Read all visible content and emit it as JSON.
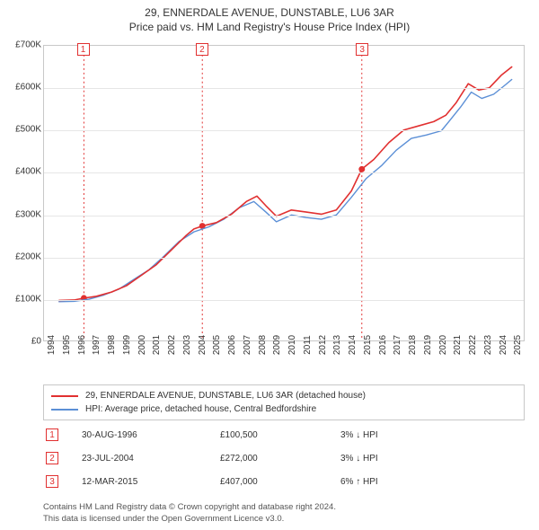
{
  "title": {
    "line1": "29, ENNERDALE AVENUE, DUNSTABLE, LU6 3AR",
    "line2": "Price paid vs. HM Land Registry's House Price Index (HPI)",
    "fontsize": 12
  },
  "chart": {
    "type": "line",
    "background_color": "#ffffff",
    "border_color": "#c8c8c8",
    "grid_color": "#e6e6e6",
    "x": {
      "min": 1994,
      "max": 2026,
      "ticks": [
        1994,
        1995,
        1996,
        1997,
        1998,
        1999,
        2000,
        2001,
        2002,
        2003,
        2004,
        2005,
        2006,
        2007,
        2008,
        2009,
        2010,
        2011,
        2012,
        2013,
        2014,
        2015,
        2016,
        2017,
        2018,
        2019,
        2020,
        2021,
        2022,
        2023,
        2024,
        2025
      ],
      "label_fontsize": 10
    },
    "y": {
      "min": 0,
      "max": 700000,
      "ticks": [
        0,
        100000,
        200000,
        300000,
        400000,
        500000,
        600000,
        700000
      ],
      "tick_labels": [
        "£0",
        "£100K",
        "£200K",
        "£300K",
        "£400K",
        "£500K",
        "£600K",
        "£700K"
      ],
      "label_fontsize": 10
    },
    "series": [
      {
        "id": "property",
        "label": "29, ENNERDALE AVENUE, DUNSTABLE, LU6 3AR (detached house)",
        "color": "#e13030",
        "line_width": 1.6,
        "points": [
          [
            1995.0,
            95000
          ],
          [
            1996.0,
            96000
          ],
          [
            1996.66,
            100500
          ],
          [
            1997.5,
            105000
          ],
          [
            1998.5,
            115000
          ],
          [
            1999.5,
            130000
          ],
          [
            2000.5,
            155000
          ],
          [
            2001.5,
            180000
          ],
          [
            2002.5,
            215000
          ],
          [
            2003.5,
            250000
          ],
          [
            2004.0,
            265000
          ],
          [
            2004.56,
            272000
          ],
          [
            2005.5,
            280000
          ],
          [
            2006.5,
            300000
          ],
          [
            2007.5,
            330000
          ],
          [
            2008.2,
            343000
          ],
          [
            2008.8,
            320000
          ],
          [
            2009.5,
            295000
          ],
          [
            2010.5,
            310000
          ],
          [
            2011.5,
            305000
          ],
          [
            2012.5,
            300000
          ],
          [
            2013.5,
            310000
          ],
          [
            2014.5,
            355000
          ],
          [
            2015.2,
            407000
          ],
          [
            2016.0,
            430000
          ],
          [
            2017.0,
            470000
          ],
          [
            2018.0,
            500000
          ],
          [
            2019.0,
            510000
          ],
          [
            2020.0,
            520000
          ],
          [
            2020.8,
            535000
          ],
          [
            2021.5,
            565000
          ],
          [
            2022.3,
            610000
          ],
          [
            2023.0,
            595000
          ],
          [
            2023.7,
            600000
          ],
          [
            2024.5,
            630000
          ],
          [
            2025.2,
            650000
          ]
        ]
      },
      {
        "id": "hpi",
        "label": "HPI: Average price, detached house, Central Bedfordshire",
        "color": "#5b8fd6",
        "line_width": 1.4,
        "points": [
          [
            1995.0,
            92000
          ],
          [
            1996.0,
            93000
          ],
          [
            1997.0,
            98000
          ],
          [
            1998.0,
            108000
          ],
          [
            1999.0,
            122000
          ],
          [
            2000.0,
            145000
          ],
          [
            2001.0,
            168000
          ],
          [
            2002.0,
            200000
          ],
          [
            2003.0,
            235000
          ],
          [
            2004.0,
            258000
          ],
          [
            2005.0,
            270000
          ],
          [
            2006.0,
            288000
          ],
          [
            2007.0,
            315000
          ],
          [
            2008.0,
            330000
          ],
          [
            2008.8,
            305000
          ],
          [
            2009.5,
            282000
          ],
          [
            2010.5,
            298000
          ],
          [
            2011.5,
            292000
          ],
          [
            2012.5,
            288000
          ],
          [
            2013.5,
            298000
          ],
          [
            2014.5,
            340000
          ],
          [
            2015.5,
            385000
          ],
          [
            2016.5,
            415000
          ],
          [
            2017.5,
            452000
          ],
          [
            2018.5,
            480000
          ],
          [
            2019.5,
            488000
          ],
          [
            2020.5,
            498000
          ],
          [
            2021.0,
            520000
          ],
          [
            2021.8,
            555000
          ],
          [
            2022.5,
            590000
          ],
          [
            2023.2,
            575000
          ],
          [
            2024.0,
            585000
          ],
          [
            2024.8,
            608000
          ],
          [
            2025.2,
            620000
          ]
        ]
      }
    ],
    "events": [
      {
        "n": "1",
        "year": 1996.66,
        "price": 100500,
        "color": "#e13030"
      },
      {
        "n": "2",
        "year": 2004.56,
        "price": 272000,
        "color": "#e13030"
      },
      {
        "n": "3",
        "year": 2015.2,
        "price": 407000,
        "color": "#e13030"
      }
    ],
    "event_marker": {
      "radius": 3.5,
      "fill": "#e13030"
    }
  },
  "legend": {
    "border_color": "#c8c8c8",
    "fontsize": 10,
    "items": [
      {
        "color": "#e13030",
        "label": "29, ENNERDALE AVENUE, DUNSTABLE, LU6 3AR (detached house)"
      },
      {
        "color": "#5b8fd6",
        "label": "HPI: Average price, detached house, Central Bedfordshire"
      }
    ]
  },
  "events_table": {
    "fontsize": 10,
    "rows": [
      {
        "n": "1",
        "date": "30-AUG-1996",
        "price": "£100,500",
        "delta": "3%",
        "arrow": "↓",
        "suffix": "HPI"
      },
      {
        "n": "2",
        "date": "23-JUL-2004",
        "price": "£272,000",
        "delta": "3%",
        "arrow": "↓",
        "suffix": "HPI"
      },
      {
        "n": "3",
        "date": "12-MAR-2015",
        "price": "£407,000",
        "delta": "6%",
        "arrow": "↑",
        "suffix": "HPI"
      }
    ]
  },
  "footnote": {
    "line1": "Contains HM Land Registry data © Crown copyright and database right 2024.",
    "line2": "This data is licensed under the Open Government Licence v3.0.",
    "color": "#555555",
    "fontsize": 9.5
  }
}
